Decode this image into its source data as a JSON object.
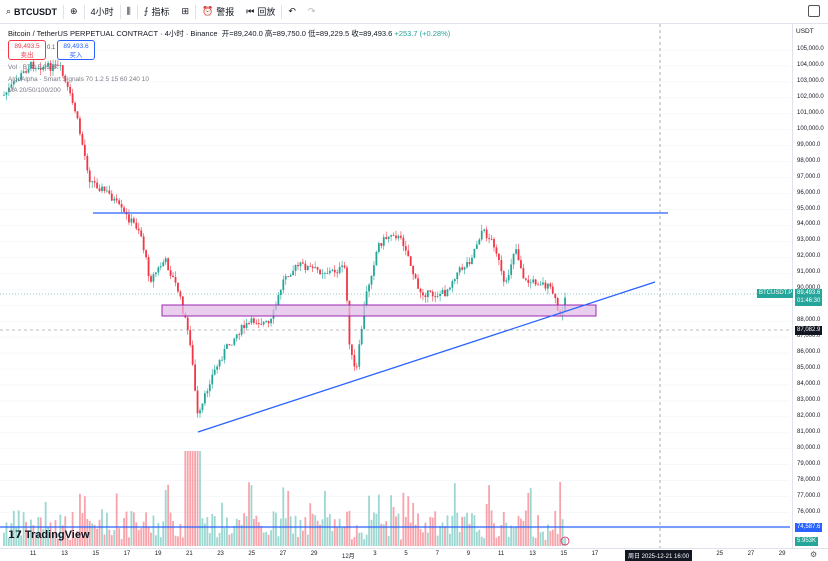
{
  "toolbar": {
    "symbol": "BTCUSDT",
    "interval": "4小时",
    "indicators_label": "指标",
    "alert_label": "警报",
    "replay_label": "回放"
  },
  "legend": {
    "title": "Bitcoin / TetherUS PERPETUAL CONTRACT · 4小时 · Binance",
    "open": "开=89,240.0",
    "high": "高=89,750.0",
    "low": "低=89,229.5",
    "close": "收=89,493.6",
    "change": "+253.7 (+0.28%)",
    "sell_price": "89,493.5",
    "sell_label": "卖出",
    "buy_price": "89,493.6",
    "buy_label": "买入",
    "spread": "0.1",
    "volume": "Vol · BTC  5.953K",
    "indicator1": "AlgoAlpha · Smart Signals 70 1.2 5 15 60 240 10",
    "indicator2": "MA 20/50/100/200"
  },
  "price_axis": {
    "currency": "USDT",
    "ticks": [
      "105,000.0",
      "104,000.0",
      "103,000.0",
      "102,000.0",
      "101,000.0",
      "100,000.0",
      "99,000.0",
      "98,000.0",
      "97,000.0",
      "96,000.0",
      "95,000.0",
      "94,000.0",
      "93,000.0",
      "92,000.0",
      "91,000.0",
      "90,000.0",
      "89,000.0",
      "88,000.0",
      "87,000.0",
      "86,000.0",
      "85,000.0",
      "84,000.0",
      "83,000.0",
      "82,000.0",
      "81,000.0",
      "80,000.0",
      "79,000.0",
      "78,000.0",
      "77,000.0",
      "76,000.0",
      "75,000.0"
    ],
    "last_price": "89,493.6",
    "last_symbol": "BTCUSDT.P",
    "countdown": "01:46:30",
    "crosshair_price": "87,082.9",
    "vol_high": "74,587.6",
    "vol_low": "5.953K"
  },
  "time_axis": {
    "ticks": [
      "11",
      "13",
      "15",
      "17",
      "19",
      "21",
      "23",
      "25",
      "27",
      "29",
      "12月",
      "3",
      "5",
      "7",
      "9",
      "11",
      "13",
      "15",
      "17",
      "19",
      "21",
      "23",
      "25",
      "27",
      "29"
    ],
    "crosshair_time": "周日 2025-12-21  16:00"
  },
  "colors": {
    "up": "#26a69a",
    "down": "#f23645",
    "line": "#2962ff",
    "zone": "#e1bee7"
  },
  "branding": "TradingView"
}
